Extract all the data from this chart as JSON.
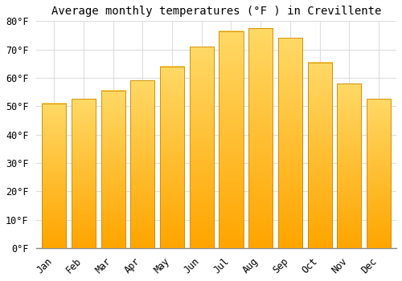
{
  "title": "Average monthly temperatures (°F ) in Crevillente",
  "months": [
    "Jan",
    "Feb",
    "Mar",
    "Apr",
    "May",
    "Jun",
    "Jul",
    "Aug",
    "Sep",
    "Oct",
    "Nov",
    "Dec"
  ],
  "values": [
    51,
    52.5,
    55.5,
    59,
    64,
    71,
    76.5,
    77.5,
    74,
    65.5,
    58,
    52.5
  ],
  "bar_color_top": "#FFD966",
  "bar_color_bottom": "#FFA500",
  "bar_edge_color": "#CC8800",
  "ylim": [
    0,
    80
  ],
  "yticks": [
    0,
    10,
    20,
    30,
    40,
    50,
    60,
    70,
    80
  ],
  "ytick_labels": [
    "0°F",
    "10°F",
    "20°F",
    "30°F",
    "40°F",
    "50°F",
    "60°F",
    "70°F",
    "80°F"
  ],
  "background_color": "#FFFFFF",
  "grid_color": "#dddddd",
  "title_fontsize": 10,
  "tick_fontsize": 8.5,
  "bar_width": 0.82
}
